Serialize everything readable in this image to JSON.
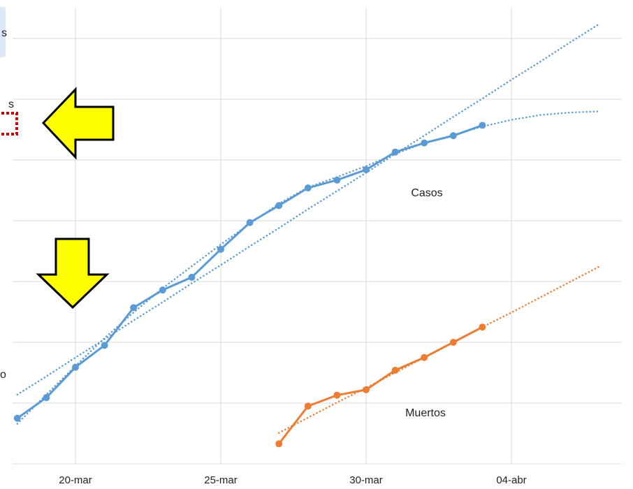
{
  "chart_data": {
    "type": "line",
    "categories": [
      null,
      null,
      "20-mar",
      null,
      null,
      null,
      null,
      "25-mar",
      null,
      null,
      null,
      null,
      "30-mar",
      null,
      null,
      null,
      null,
      "04-abr",
      null,
      null,
      null
    ],
    "series": [
      {
        "color": "#5b9bd5",
        "style": "solid",
        "markers": true,
        "values": [
          0.75,
          1.09,
          1.59,
          1.95,
          2.57,
          2.86,
          3.07,
          3.53,
          3.97,
          4.25,
          4.54,
          4.67,
          4.84,
          5.13,
          5.28,
          5.4,
          5.57,
          null,
          null,
          null,
          null
        ]
      },
      {
        "color": "#ed7d31",
        "style": "solid",
        "markers": true,
        "values": [
          null,
          null,
          null,
          null,
          null,
          null,
          null,
          null,
          null,
          0.33,
          0.95,
          1.13,
          1.22,
          1.54,
          1.75,
          2.0,
          2.25,
          null,
          null,
          null,
          null
        ]
      },
      {
        "color": "#5b9bd5",
        "style": "dotted",
        "markers": false,
        "values": [
          1.14,
          1.44,
          1.75,
          2.05,
          2.36,
          2.66,
          2.97,
          3.27,
          3.58,
          3.88,
          4.19,
          4.49,
          4.79,
          5.1,
          5.4,
          5.71,
          6.01,
          6.32,
          6.62,
          6.93,
          7.23
        ]
      },
      {
        "color": "#5b9bd5",
        "style": "dotted",
        "markers": false,
        "values": [
          0.66,
          1.14,
          1.61,
          2.07,
          2.49,
          2.89,
          3.25,
          3.61,
          3.95,
          4.28,
          4.55,
          4.72,
          4.9,
          5.1,
          5.28,
          5.41,
          5.55,
          5.66,
          5.74,
          5.78,
          5.8
        ]
      },
      {
        "color": "#ed7d31",
        "style": "dotted",
        "markers": false,
        "values": [
          null,
          null,
          null,
          null,
          null,
          null,
          null,
          null,
          null,
          0.51,
          0.76,
          1.01,
          1.25,
          1.5,
          1.75,
          2.0,
          2.25,
          2.49,
          2.74,
          2.99,
          3.24
        ]
      }
    ],
    "ylim": [
      0,
      7.5
    ],
    "yticks": [
      0,
      1,
      2,
      3,
      4,
      5,
      6,
      7
    ],
    "grid": true,
    "annotations": [
      "Casos",
      "Muertos",
      "s",
      "s",
      "o"
    ]
  }
}
